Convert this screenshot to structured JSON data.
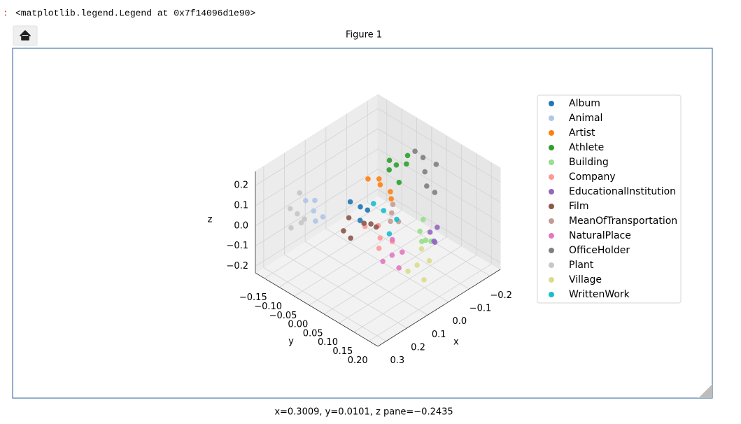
{
  "output": {
    "prompt": ":",
    "text": "<matplotlib.legend.Legend at 0x7f14096d1e90>"
  },
  "figure": {
    "title": "Figure 1",
    "status": "x=0.3009, y=0.0101, z pane=−0.2435"
  },
  "chart_data": {
    "type": "scatter3d",
    "xlabel": "x",
    "ylabel": "y",
    "zlabel": "z",
    "xlim": [
      -0.25,
      0.34
    ],
    "ylim": [
      -0.18,
      0.23
    ],
    "zlim": [
      -0.233,
      0.27
    ],
    "xticks": [
      {
        "value": -0.2,
        "label": "−0.2"
      },
      {
        "value": -0.1,
        "label": "−0.1"
      },
      {
        "value": 0,
        "label": "0.0"
      },
      0.1,
      0.2,
      0.3
    ],
    "yticks": [
      {
        "value": -0.15,
        "label": "−0.15"
      },
      {
        "value": -0.1,
        "label": "−0.10"
      },
      {
        "value": -0.05,
        "label": "−0.05"
      },
      {
        "value": 0,
        "label": "0.00"
      },
      0.05,
      {
        "value": 0.1,
        "label": "0.10"
      },
      0.15,
      {
        "value": 0.2,
        "label": "0.20"
      }
    ],
    "zticks": [
      {
        "value": -0.2,
        "label": "−0.2"
      },
      {
        "value": -0.1,
        "label": "−0.1"
      },
      {
        "value": 0,
        "label": "0.0"
      },
      0.1,
      0.2
    ],
    "grid": true,
    "legend": "right",
    "series": [
      {
        "name": "Album",
        "color": "#1f77b4",
        "x": [
          0.05,
          0.07,
          0.03,
          0.08
        ],
        "y": [
          -0.03,
          -0.05,
          -0.02,
          -0.01
        ],
        "z": [
          0.04,
          0.06,
          0.02,
          0.01
        ]
      },
      {
        "name": "Animal",
        "color": "#aec7e8",
        "x": [
          0.16,
          0.14,
          0.18,
          0.13,
          0.17
        ],
        "y": [
          -0.11,
          -0.12,
          -0.09,
          -0.1,
          -0.13
        ],
        "z": [
          0.02,
          0.05,
          0.0,
          -0.02,
          0.06
        ]
      },
      {
        "name": "Artist",
        "color": "#ff7f0e",
        "x": [
          -0.06,
          -0.03,
          -0.08,
          -0.04,
          -0.07
        ],
        "y": [
          -0.04,
          -0.06,
          -0.02,
          -0.03,
          -0.01
        ],
        "z": [
          0.07,
          0.1,
          0.04,
          0.12,
          0.02
        ]
      },
      {
        "name": "Athlete",
        "color": "#2ca02c",
        "x": [
          -0.08,
          -0.1,
          -0.06,
          -0.12,
          -0.05,
          -0.09
        ],
        "y": [
          0.0,
          0.02,
          -0.01,
          0.01,
          0.03,
          -0.03
        ],
        "z": [
          0.19,
          0.2,
          0.17,
          0.22,
          0.15,
          0.18
        ]
      },
      {
        "name": "Building",
        "color": "#98df8a",
        "x": [
          -0.05,
          -0.03,
          -0.08,
          -0.02,
          -0.06
        ],
        "y": [
          0.1,
          0.12,
          0.09,
          0.14,
          0.13
        ],
        "z": [
          -0.03,
          -0.05,
          0.0,
          -0.02,
          -0.06
        ]
      },
      {
        "name": "Company",
        "color": "#ff9896",
        "x": [
          0.07,
          0.05,
          0.09,
          0.1,
          0.04
        ],
        "y": [
          0.05,
          0.03,
          0.06,
          0.02,
          0.07
        ],
        "z": [
          -0.03,
          0.0,
          -0.06,
          0.02,
          -0.05
        ]
      },
      {
        "name": "EducationalInstitution",
        "color": "#9467bd",
        "x": [
          -0.07,
          -0.06,
          -0.09,
          -0.05
        ],
        "y": [
          0.12,
          0.14,
          0.13,
          0.15
        ],
        "z": [
          -0.03,
          -0.05,
          -0.01,
          -0.04
        ]
      },
      {
        "name": "Film",
        "color": "#8c564b",
        "x": [
          0.09,
          0.12,
          0.06,
          0.14,
          0.1,
          0.16
        ],
        "y": [
          0.01,
          -0.02,
          0.03,
          0.0,
          0.04,
          -0.01
        ],
        "z": [
          0.02,
          0.04,
          0.0,
          -0.03,
          0.05,
          0.01
        ]
      },
      {
        "name": "MeanOfTransportation",
        "color": "#c49c94",
        "x": [
          0.0,
          0.02,
          -0.02,
          0.01
        ],
        "y": [
          0.04,
          0.05,
          0.03,
          0.07
        ],
        "z": [
          0.04,
          0.02,
          0.06,
          0.03
        ]
      },
      {
        "name": "NaturalPlace",
        "color": "#e377c2",
        "x": [
          0.07,
          0.1,
          0.05,
          0.08,
          0.04
        ],
        "y": [
          0.09,
          0.08,
          0.11,
          0.12,
          0.07
        ],
        "z": [
          -0.08,
          -0.1,
          -0.06,
          -0.11,
          -0.04
        ]
      },
      {
        "name": "OfficeHolder",
        "color": "#7f7f7f",
        "x": [
          -0.16,
          -0.18,
          -0.14,
          -0.2,
          -0.15,
          -0.17
        ],
        "y": [
          0.04,
          0.02,
          0.06,
          0.05,
          0.08,
          0.0
        ],
        "z": [
          0.14,
          0.18,
          0.1,
          0.16,
          0.08,
          0.2
        ]
      },
      {
        "name": "Plant",
        "color": "#c7c7c7",
        "x": [
          0.21,
          0.23,
          0.19,
          0.22,
          0.17,
          0.24
        ],
        "y": [
          -0.13,
          -0.14,
          -0.12,
          -0.11,
          -0.15,
          -0.13
        ],
        "z": [
          0.02,
          0.05,
          -0.01,
          0.0,
          0.08,
          -0.03
        ]
      },
      {
        "name": "Village",
        "color": "#dbdb8d",
        "x": [
          0.05,
          0.08,
          0.02,
          0.06,
          0.0
        ],
        "y": [
          0.16,
          0.15,
          0.18,
          0.19,
          0.14
        ],
        "z": [
          -0.08,
          -0.1,
          -0.06,
          -0.12,
          -0.05
        ]
      },
      {
        "name": "WrittenWork",
        "color": "#17becf",
        "x": [
          0.01,
          0.03,
          -0.01,
          0.04
        ],
        "y": [
          0.02,
          0.0,
          0.05,
          0.06
        ],
        "z": [
          0.04,
          0.07,
          0.01,
          -0.02
        ]
      }
    ]
  }
}
